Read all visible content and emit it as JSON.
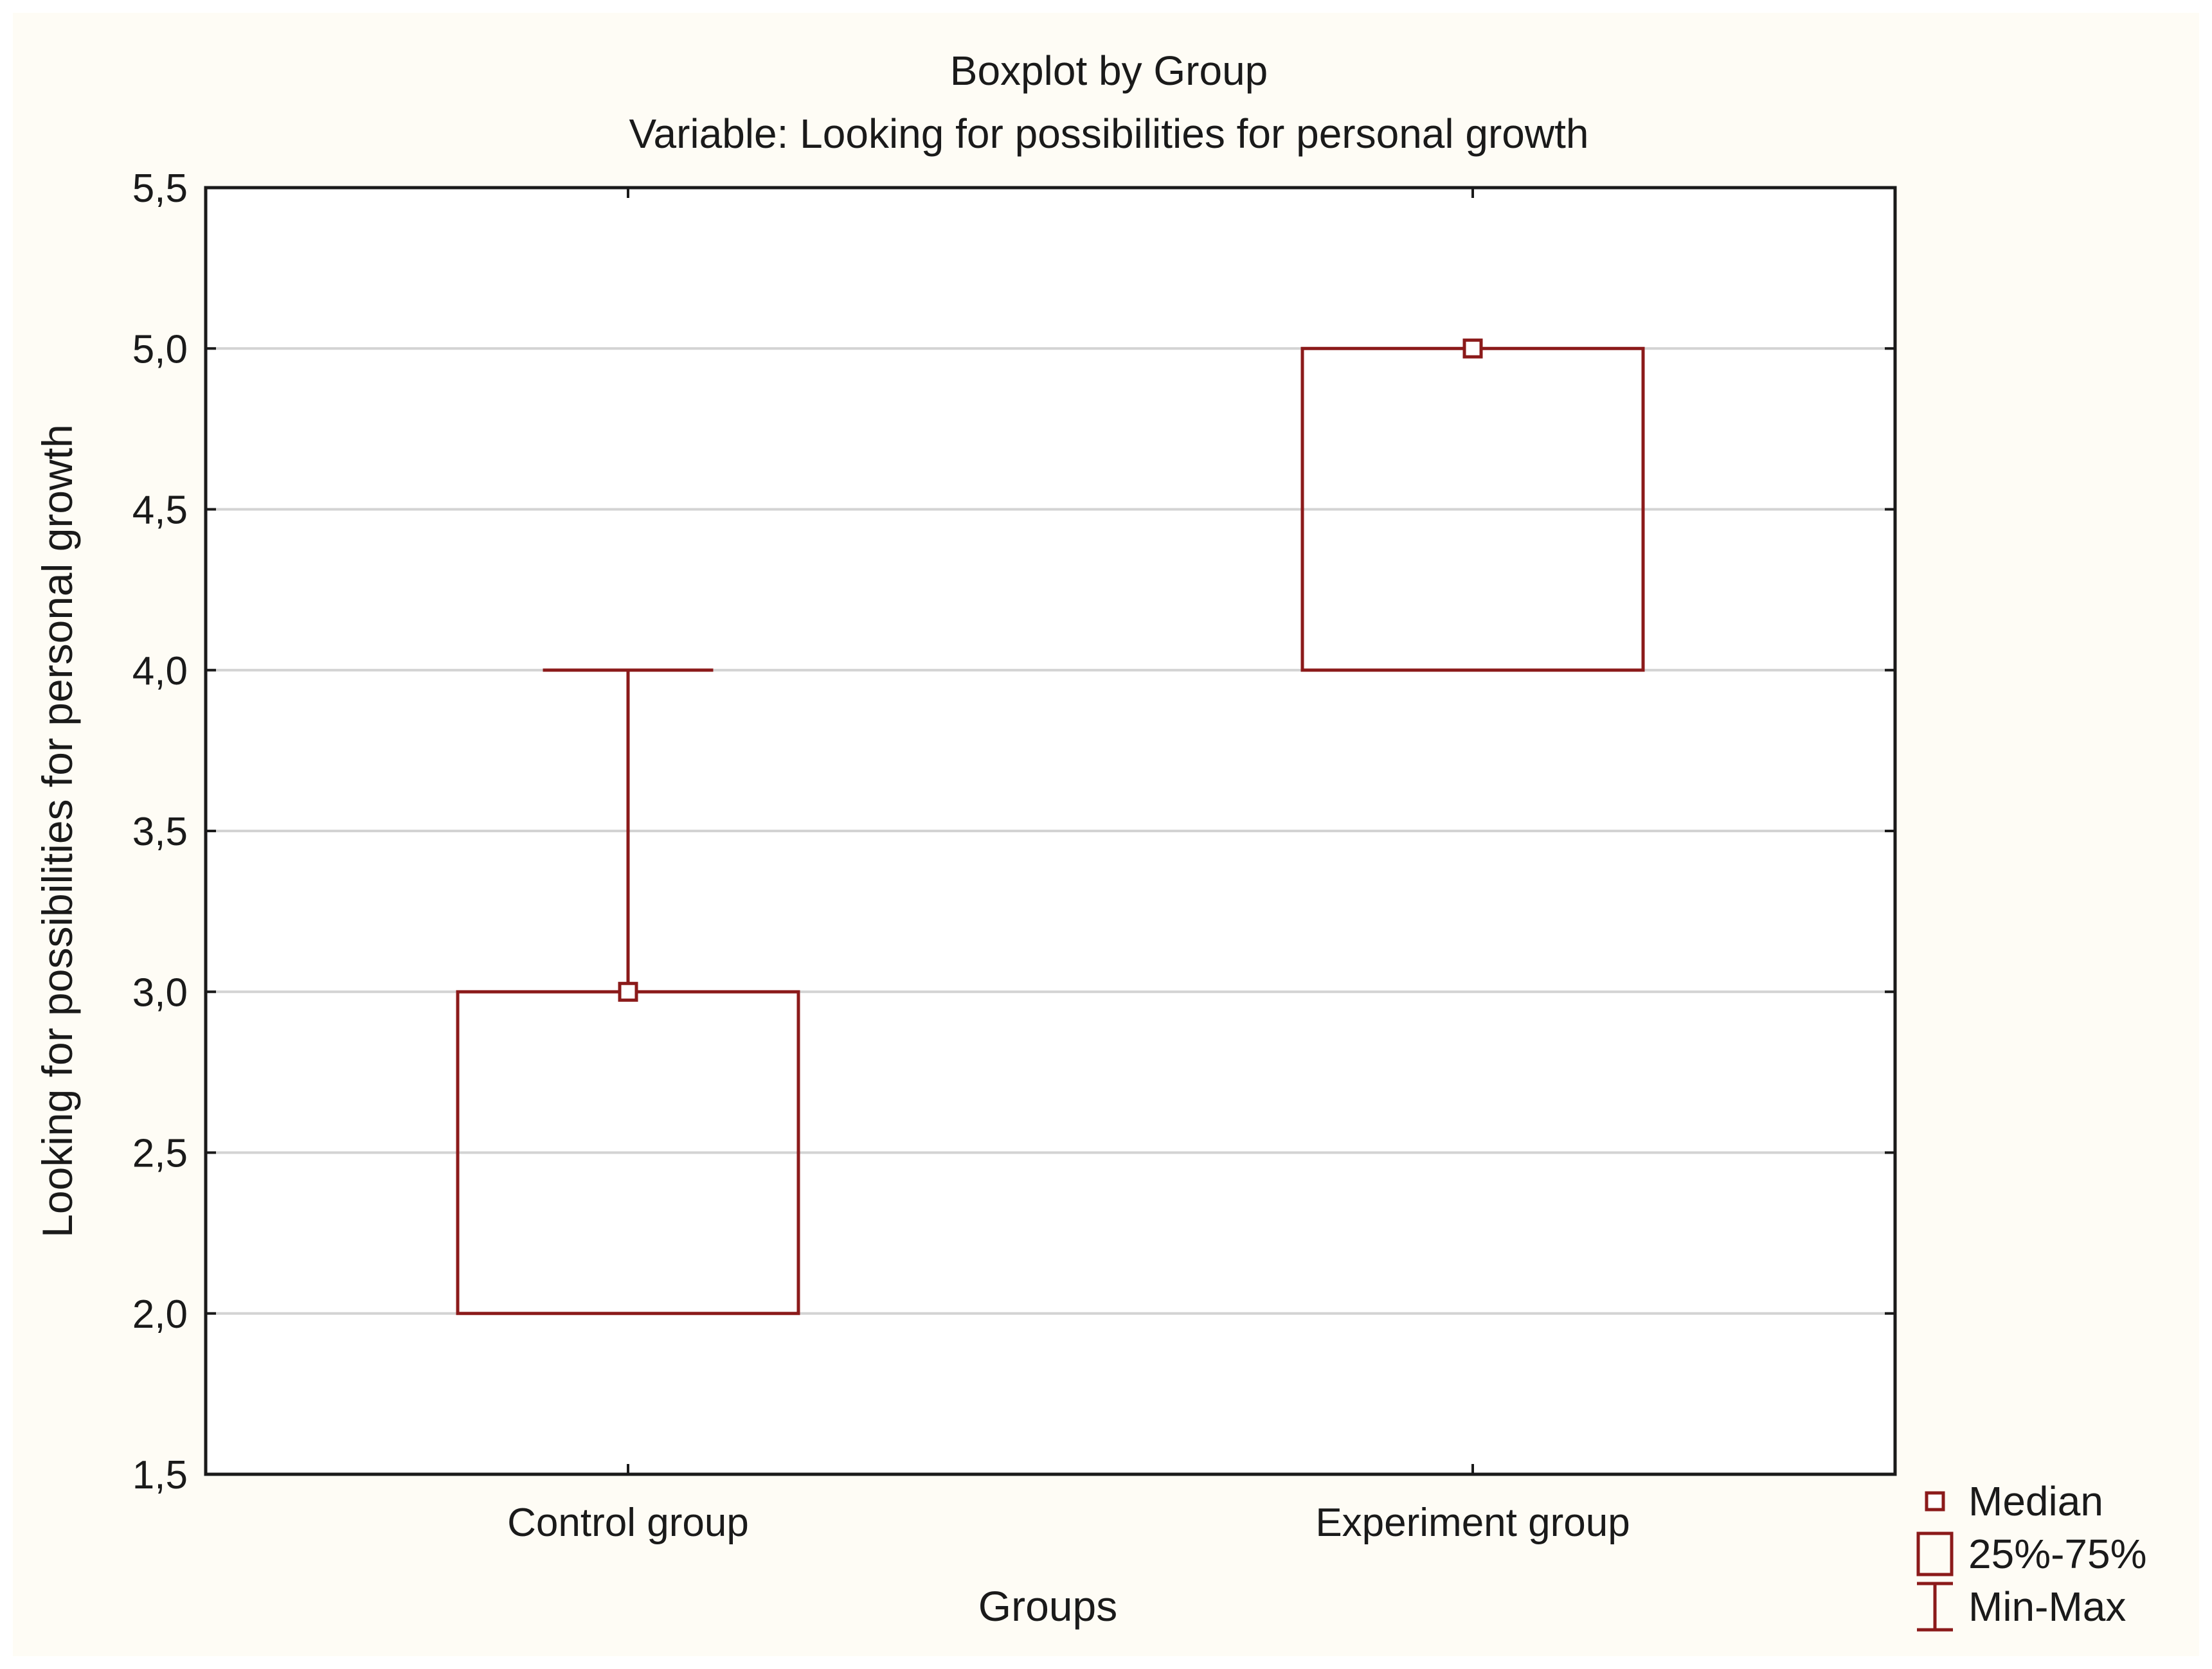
{
  "chart_data": {
    "type": "boxplot",
    "title": "Boxplot by Group",
    "subtitle": "Variable: Looking for possibilities for personal growth",
    "xlabel": "Groups",
    "ylabel": "Looking for possibilities for personal growth",
    "ylim": [
      1.5,
      5.5
    ],
    "yticks": [
      "1,5",
      "2,0",
      "2,5",
      "3,0",
      "3,5",
      "4,0",
      "4,5",
      "5,0",
      "5,5"
    ],
    "ytick_values": [
      1.5,
      2.0,
      2.5,
      3.0,
      3.5,
      4.0,
      4.5,
      5.0,
      5.5
    ],
    "grid": true,
    "categories": [
      "Control group",
      "Experiment group"
    ],
    "series": [
      {
        "name": "Control group",
        "median": 3.0,
        "q1": 2.0,
        "q3": 3.0,
        "min": 2.0,
        "max": 4.0
      },
      {
        "name": "Experiment group",
        "median": 5.0,
        "q1": 4.0,
        "q3": 5.0,
        "min": 4.0,
        "max": 5.0
      }
    ],
    "legend": {
      "position": "bottom-right",
      "items": [
        "Median",
        "25%-75%",
        "Min-Max"
      ]
    },
    "colors": {
      "box": "#8b1a1a",
      "grid": "#d3d3d3",
      "axis": "#1a1a1a",
      "background": "#fefcf5",
      "plot_background": "#ffffff"
    }
  }
}
